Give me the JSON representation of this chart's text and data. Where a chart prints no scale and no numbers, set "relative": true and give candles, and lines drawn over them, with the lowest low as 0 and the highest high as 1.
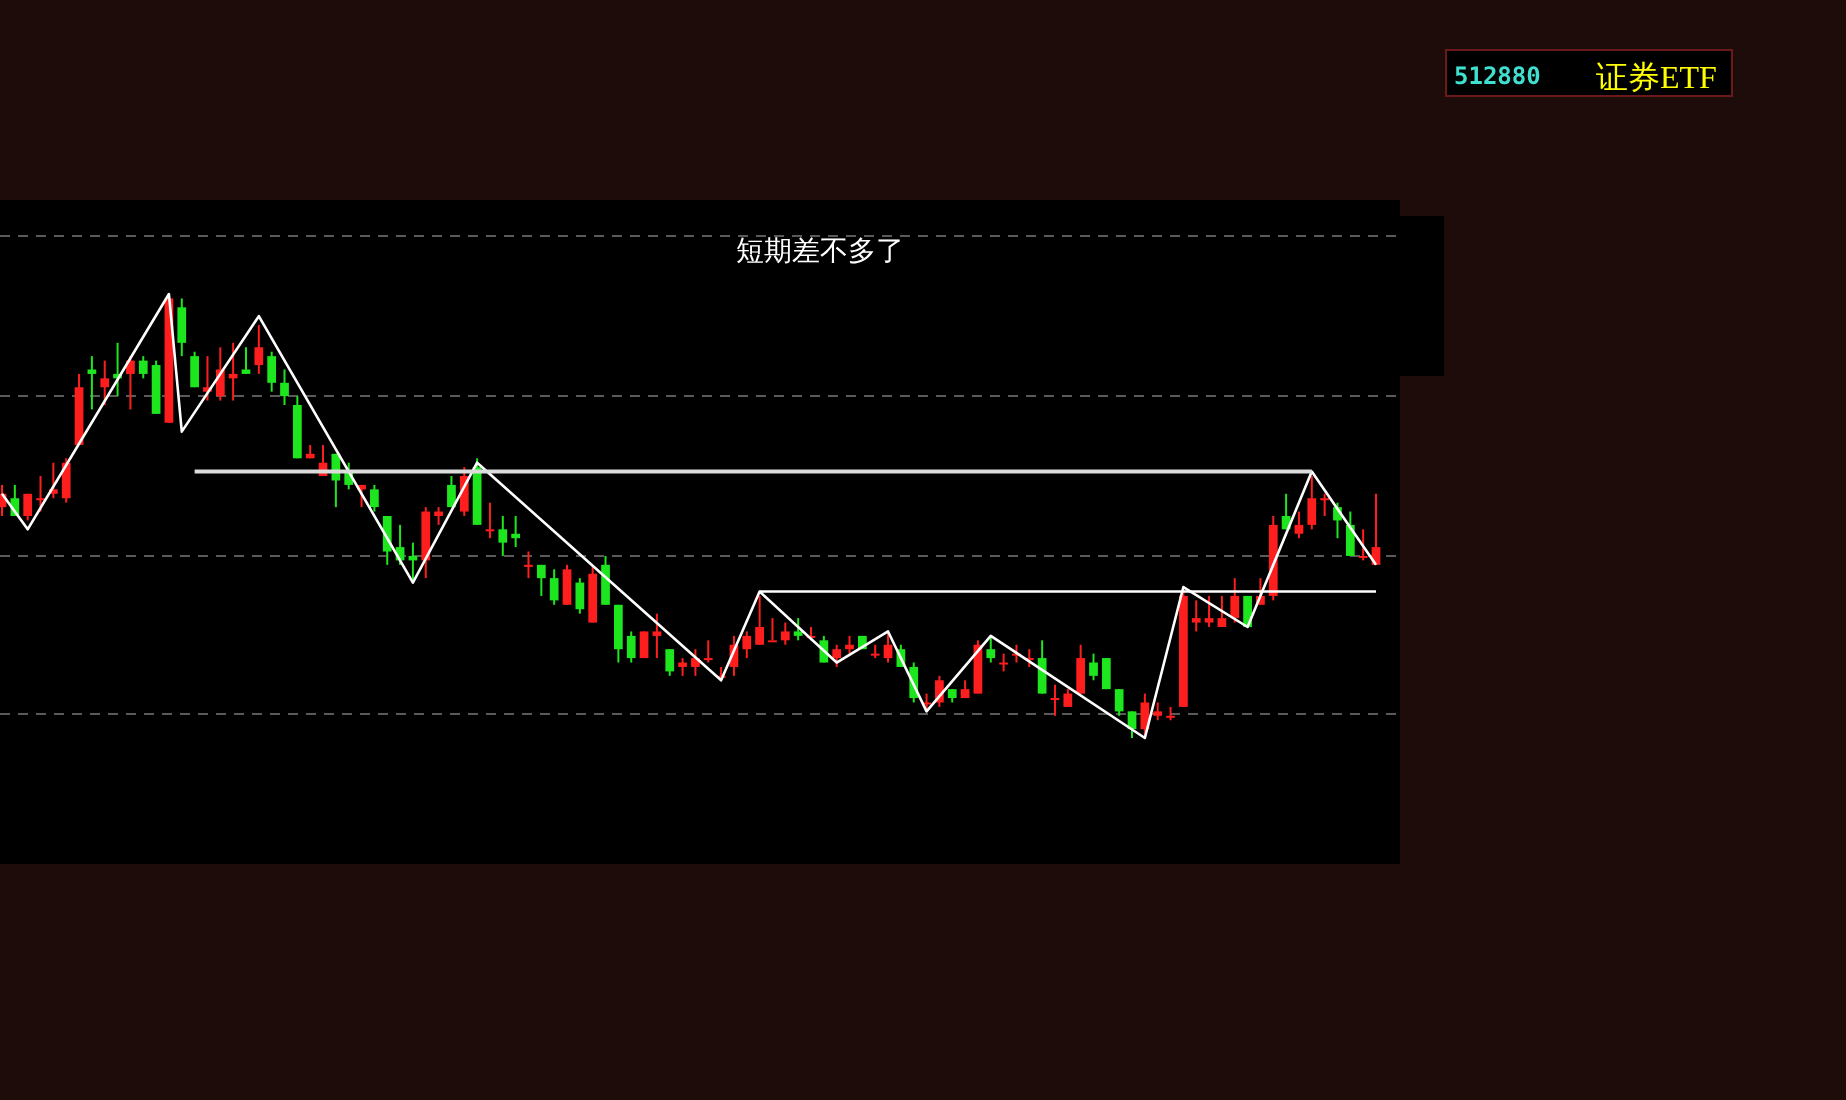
{
  "chart_data": {
    "type": "candlestick",
    "title": "短期差不多了",
    "relative": true,
    "grid": "y",
    "annotations": [
      "512880",
      "证券ETF"
    ],
    "categories": [
      null,
      null,
      null,
      null,
      null,
      null,
      null,
      null,
      null,
      null,
      null,
      null,
      null,
      null,
      null,
      null,
      null,
      null,
      null,
      null,
      null,
      null,
      null,
      null,
      null,
      null,
      null,
      null,
      null,
      null,
      null,
      null,
      null,
      null,
      null,
      null,
      null,
      null,
      null,
      null,
      null,
      null,
      null,
      null,
      null,
      null,
      null,
      null,
      null,
      null,
      null,
      null,
      null,
      null,
      null,
      null,
      null,
      null,
      null,
      null,
      null,
      null,
      null,
      null,
      null,
      null,
      null,
      null,
      null,
      null,
      null,
      null,
      null,
      null,
      null,
      null,
      null,
      null,
      null,
      null,
      null,
      null,
      null,
      null,
      null,
      null,
      null,
      null,
      null,
      null,
      null,
      null,
      null,
      null,
      null,
      null,
      null,
      null,
      null,
      null,
      null,
      null,
      null,
      null,
      null,
      null,
      null,
      null
    ],
    "ohlc": [
      [
        0.52,
        0.57,
        0.5,
        0.55
      ],
      [
        0.54,
        0.57,
        0.5,
        0.5
      ],
      [
        0.5,
        0.55,
        0.49,
        0.55
      ],
      [
        0.54,
        0.59,
        0.51,
        0.54
      ],
      [
        0.55,
        0.62,
        0.54,
        0.56
      ],
      [
        0.54,
        0.63,
        0.53,
        0.62
      ],
      [
        0.66,
        0.82,
        0.66,
        0.79
      ],
      [
        0.83,
        0.86,
        0.74,
        0.82
      ],
      [
        0.79,
        0.85,
        0.75,
        0.81
      ],
      [
        0.82,
        0.89,
        0.77,
        0.81
      ],
      [
        0.82,
        0.86,
        0.74,
        0.85
      ],
      [
        0.85,
        0.86,
        0.81,
        0.82
      ],
      [
        0.84,
        0.85,
        0.73,
        0.73
      ],
      [
        0.71,
        1.0,
        0.71,
        0.99
      ],
      [
        0.97,
        0.99,
        0.86,
        0.89
      ],
      [
        0.86,
        0.87,
        0.79,
        0.79
      ],
      [
        0.78,
        0.86,
        0.76,
        0.79
      ],
      [
        0.77,
        0.88,
        0.76,
        0.83
      ],
      [
        0.81,
        0.89,
        0.76,
        0.82
      ],
      [
        0.83,
        0.88,
        0.82,
        0.82
      ],
      [
        0.84,
        0.93,
        0.82,
        0.88
      ],
      [
        0.86,
        0.87,
        0.78,
        0.8
      ],
      [
        0.8,
        0.83,
        0.75,
        0.77
      ],
      [
        0.75,
        0.77,
        0.63,
        0.63
      ],
      [
        0.63,
        0.66,
        0.63,
        0.64
      ],
      [
        0.59,
        0.66,
        0.59,
        0.62
      ],
      [
        0.64,
        0.64,
        0.52,
        0.58
      ],
      [
        0.6,
        0.62,
        0.56,
        0.57
      ],
      [
        0.56,
        0.57,
        0.52,
        0.57
      ],
      [
        0.56,
        0.57,
        0.51,
        0.52
      ],
      [
        0.5,
        0.5,
        0.39,
        0.42
      ],
      [
        0.43,
        0.48,
        0.39,
        0.4
      ],
      [
        0.41,
        0.44,
        0.35,
        0.4
      ],
      [
        0.4,
        0.52,
        0.36,
        0.51
      ],
      [
        0.5,
        0.52,
        0.48,
        0.51
      ],
      [
        0.57,
        0.59,
        0.52,
        0.52
      ],
      [
        0.51,
        0.61,
        0.5,
        0.59
      ],
      [
        0.61,
        0.63,
        0.48,
        0.48
      ],
      [
        0.47,
        0.53,
        0.45,
        0.47
      ],
      [
        0.47,
        0.5,
        0.41,
        0.44
      ],
      [
        0.46,
        0.5,
        0.43,
        0.45
      ],
      [
        0.39,
        0.42,
        0.36,
        0.39
      ],
      [
        0.39,
        0.39,
        0.32,
        0.36
      ],
      [
        0.36,
        0.38,
        0.3,
        0.31
      ],
      [
        0.3,
        0.39,
        0.3,
        0.38
      ],
      [
        0.35,
        0.36,
        0.28,
        0.29
      ],
      [
        0.26,
        0.39,
        0.26,
        0.37
      ],
      [
        0.39,
        0.41,
        0.3,
        0.3
      ],
      [
        0.3,
        0.3,
        0.17,
        0.2
      ],
      [
        0.23,
        0.24,
        0.17,
        0.18
      ],
      [
        0.18,
        0.24,
        0.18,
        0.24
      ],
      [
        0.23,
        0.28,
        0.18,
        0.24
      ],
      [
        0.2,
        0.2,
        0.14,
        0.15
      ],
      [
        0.16,
        0.18,
        0.14,
        0.17
      ],
      [
        0.16,
        0.2,
        0.14,
        0.18
      ],
      [
        0.18,
        0.22,
        0.17,
        0.18
      ],
      [
        0.14,
        0.16,
        0.13,
        0.14
      ],
      [
        0.16,
        0.23,
        0.14,
        0.21
      ],
      [
        0.2,
        0.24,
        0.18,
        0.23
      ],
      [
        0.21,
        0.32,
        0.21,
        0.25
      ],
      [
        0.22,
        0.27,
        0.22,
        0.22
      ],
      [
        0.22,
        0.26,
        0.21,
        0.24
      ],
      [
        0.24,
        0.27,
        0.22,
        0.23
      ],
      [
        0.23,
        0.25,
        0.22,
        0.23
      ],
      [
        0.22,
        0.23,
        0.17,
        0.17
      ],
      [
        0.18,
        0.21,
        0.16,
        0.2
      ],
      [
        0.2,
        0.23,
        0.19,
        0.21
      ],
      [
        0.23,
        0.23,
        0.2,
        0.2
      ],
      [
        0.19,
        0.21,
        0.18,
        0.19
      ],
      [
        0.18,
        0.24,
        0.17,
        0.21
      ],
      [
        0.2,
        0.21,
        0.16,
        0.16
      ],
      [
        0.16,
        0.17,
        0.08,
        0.09
      ],
      [
        0.08,
        0.1,
        0.06,
        0.08
      ],
      [
        0.08,
        0.14,
        0.07,
        0.13
      ],
      [
        0.11,
        0.11,
        0.08,
        0.09
      ],
      [
        0.09,
        0.13,
        0.09,
        0.11
      ],
      [
        0.1,
        0.22,
        0.1,
        0.21
      ],
      [
        0.2,
        0.23,
        0.17,
        0.18
      ],
      [
        0.17,
        0.19,
        0.15,
        0.17
      ],
      [
        0.19,
        0.21,
        0.17,
        0.19
      ],
      [
        0.18,
        0.2,
        0.16,
        0.18
      ],
      [
        0.18,
        0.22,
        0.1,
        0.1
      ],
      [
        0.09,
        0.12,
        0.05,
        0.09
      ],
      [
        0.07,
        0.11,
        0.07,
        0.1
      ],
      [
        0.1,
        0.21,
        0.1,
        0.18
      ],
      [
        0.17,
        0.19,
        0.13,
        0.14
      ],
      [
        0.18,
        0.18,
        0.11,
        0.11
      ],
      [
        0.11,
        0.11,
        0.05,
        0.06
      ],
      [
        0.06,
        0.06,
        0.0,
        0.02
      ],
      [
        0.02,
        0.1,
        0.0,
        0.08
      ],
      [
        0.05,
        0.08,
        0.04,
        0.06
      ],
      [
        0.05,
        0.07,
        0.04,
        0.05
      ],
      [
        0.07,
        0.33,
        0.07,
        0.32
      ],
      [
        0.26,
        0.31,
        0.24,
        0.27
      ],
      [
        0.26,
        0.32,
        0.25,
        0.27
      ],
      [
        0.25,
        0.32,
        0.25,
        0.27
      ],
      [
        0.27,
        0.36,
        0.26,
        0.32
      ],
      [
        0.32,
        0.32,
        0.25,
        0.25
      ],
      [
        0.3,
        0.36,
        0.3,
        0.32
      ],
      [
        0.32,
        0.5,
        0.31,
        0.48
      ],
      [
        0.5,
        0.55,
        0.47,
        0.47
      ],
      [
        0.46,
        0.51,
        0.45,
        0.48
      ],
      [
        0.48,
        0.59,
        0.47,
        0.54
      ],
      [
        0.54,
        0.55,
        0.5,
        0.54
      ],
      [
        0.52,
        0.53,
        0.45,
        0.49
      ],
      [
        0.48,
        0.51,
        0.41,
        0.41
      ],
      [
        0.41,
        0.47,
        0.4,
        0.41
      ],
      [
        0.39,
        0.55,
        0.39,
        0.43
      ]
    ],
    "series": [
      {
        "type": "line",
        "color": "#ffffff",
        "values": [
          0.55,
          null,
          0.47,
          null,
          null,
          null,
          null,
          null,
          null,
          null,
          null,
          null,
          null,
          1.0,
          0.69,
          null,
          null,
          null,
          null,
          null,
          0.95,
          null,
          null,
          null,
          null,
          null,
          null,
          null,
          null,
          null,
          null,
          null,
          0.35,
          null,
          null,
          null,
          null,
          0.62,
          null,
          null,
          null,
          null,
          null,
          null,
          null,
          null,
          null,
          null,
          null,
          null,
          null,
          null,
          null,
          null,
          null,
          null,
          0.13,
          null,
          null,
          0.33,
          null,
          null,
          null,
          null,
          null,
          0.17,
          null,
          null,
          null,
          0.24,
          null,
          null,
          0.06,
          null,
          null,
          null,
          null,
          0.23,
          null,
          null,
          null,
          null,
          null,
          null,
          null,
          null,
          null,
          null,
          null,
          0.0,
          null,
          null,
          0.34,
          null,
          null,
          null,
          null,
          0.25,
          null,
          null,
          null,
          null,
          0.6,
          null,
          null,
          null,
          null,
          0.39
        ]
      },
      {
        "type": "line",
        "color": "#dcdcdc",
        "values": [
          null,
          null,
          null,
          null,
          null,
          null,
          null,
          null,
          null,
          null,
          null,
          null,
          null,
          null,
          null,
          0.6,
          null,
          null,
          null,
          null,
          null,
          null,
          null,
          null,
          null,
          null,
          null,
          null,
          null,
          null,
          null,
          null,
          null,
          null,
          null,
          null,
          null,
          null,
          null,
          null,
          null,
          null,
          null,
          null,
          null,
          null,
          null,
          null,
          null,
          null,
          null,
          null,
          null,
          null,
          null,
          null,
          null,
          null,
          null,
          null,
          null,
          null,
          null,
          null,
          null,
          null,
          null,
          null,
          null,
          null,
          null,
          null,
          null,
          null,
          null,
          null,
          null,
          null,
          null,
          null,
          null,
          null,
          null,
          null,
          null,
          null,
          null,
          null,
          null,
          null,
          null,
          null,
          null,
          null,
          null,
          null,
          null,
          null,
          null,
          null,
          null,
          null,
          0.6,
          null,
          null,
          null,
          null,
          null
        ]
      },
      {
        "type": "line",
        "color": "#ffffff",
        "values": [
          null,
          null,
          null,
          null,
          null,
          null,
          null,
          null,
          null,
          null,
          null,
          null,
          null,
          null,
          null,
          null,
          null,
          null,
          null,
          null,
          null,
          null,
          null,
          null,
          null,
          null,
          null,
          null,
          null,
          null,
          null,
          null,
          null,
          null,
          null,
          null,
          null,
          null,
          null,
          null,
          null,
          null,
          null,
          null,
          null,
          null,
          null,
          null,
          null,
          null,
          null,
          null,
          null,
          null,
          null,
          null,
          null,
          null,
          null,
          0.33,
          null,
          null,
          null,
          null,
          null,
          null,
          null,
          null,
          null,
          null,
          null,
          null,
          null,
          null,
          null,
          null,
          null,
          null,
          null,
          null,
          null,
          null,
          null,
          null,
          null,
          null,
          null,
          null,
          null,
          null,
          null,
          null,
          null,
          null,
          null,
          null,
          null,
          null,
          null,
          null,
          null,
          null,
          null,
          null,
          null,
          null,
          null,
          0.33
        ]
      }
    ]
  }
}
